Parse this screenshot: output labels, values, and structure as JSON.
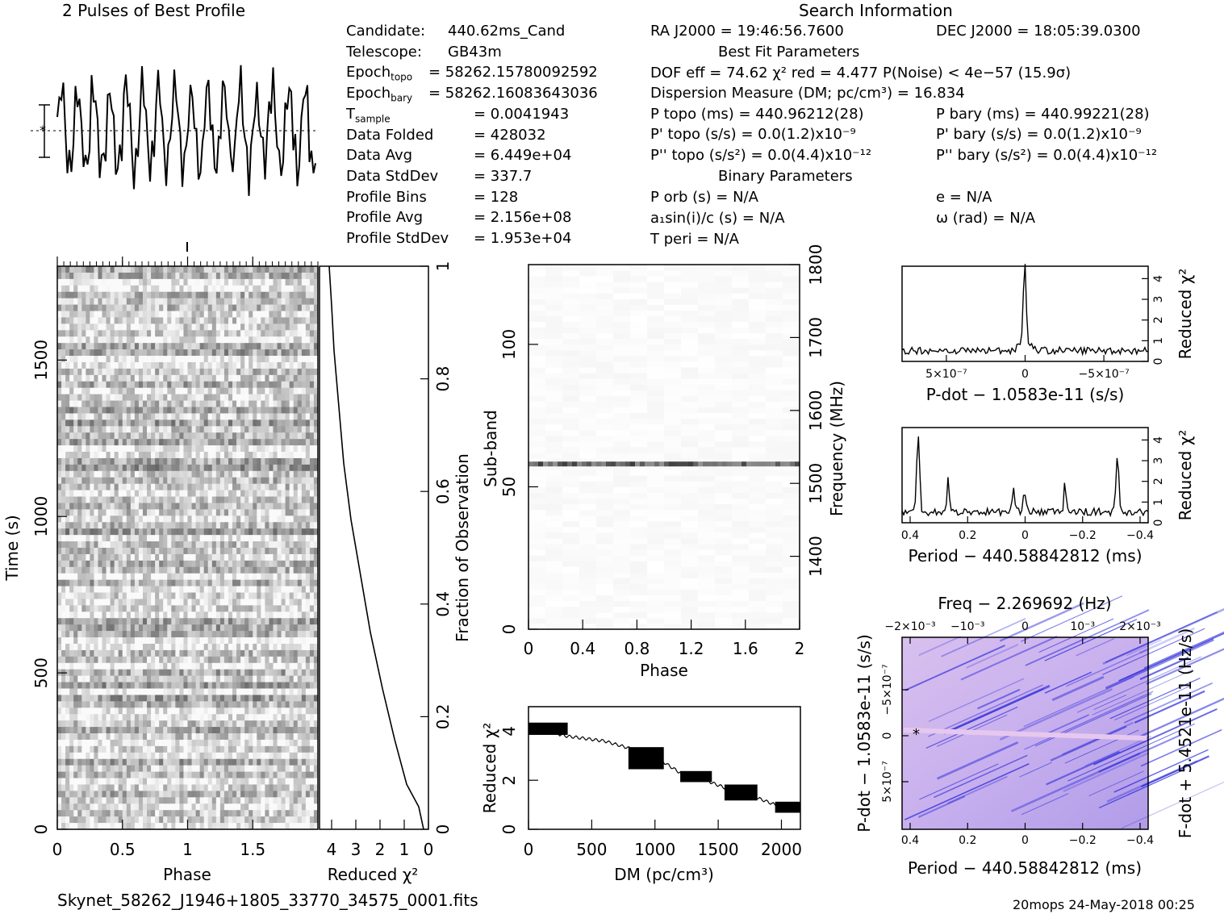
{
  "header": {
    "profile_title": "2 Pulses of Best Profile",
    "search_title": "Search Information",
    "best_fit_title": "Best Fit Parameters",
    "binary_title": "Binary Parameters"
  },
  "candidate_info": [
    {
      "label": "Candidate:",
      "value": "440.62ms_Cand"
    },
    {
      "label": "Telescope:",
      "value": "GB43m"
    },
    {
      "label": "Epoch",
      "sub": "topo",
      "value": "= 58262.15780092592"
    },
    {
      "label": "Epoch",
      "sub": "bary",
      "value": "= 58262.16083643036"
    },
    {
      "label": "T",
      "sub": "sample",
      "value": "=   0.0041943"
    },
    {
      "label": "Data Folded",
      "value": "=   428032"
    },
    {
      "label": "Data Avg",
      "value": "=   6.449e+04"
    },
    {
      "label": "Data StdDev",
      "value": "=   337.7"
    },
    {
      "label": "Profile Bins",
      "value": "=   128"
    },
    {
      "label": "Profile Avg",
      "value": "=   2.156e+08"
    },
    {
      "label": "Profile StdDev",
      "value": "=   1.953e+04"
    }
  ],
  "search_info": {
    "ra": "RA J2000 = 19:46:56.7600",
    "dec": "DEC J2000 = 18:05:39.0300",
    "dof": "DOF eff = 74.62  χ² red = 4.477  P(Noise) < 4e−57  (15.9σ)",
    "dm": "Dispersion Measure (DM; pc/cm³) = 16.834",
    "p_topo": "P topo (ms) =  440.96212(28)",
    "p_bary": "P bary (ms) =  440.99221(28)",
    "pd_topo": "P' topo (s/s) = 0.0(1.2)x10⁻⁹",
    "pd_bary": "P' bary (s/s) = 0.0(1.2)x10⁻⁹",
    "pdd_topo": "P'' topo (s/s²) = 0.0(4.4)x10⁻¹²",
    "pdd_bary": "P'' bary (s/s²) = 0.0(4.4)x10⁻¹²",
    "porb": "P orb (s) = N/A",
    "e": "e = N/A",
    "a1": "a₁sin(i)/c (s) = N/A",
    "omega": "ω (rad) = N/A",
    "tperi": "T peri = N/A"
  },
  "footer": {
    "filename": "Skynet_58262_J1946+1805_33770_34575_0001.fits",
    "stamp": "20mops 24-May-2018 00:25"
  },
  "colors": {
    "waterfall_dark": "#000000",
    "pdot_map_blue": "#1a1ad8",
    "pdot_map_light": "#e6c8ee"
  },
  "chart_data": [
    {
      "type": "line",
      "name": "profile",
      "title": "2 Pulses of Best Profile",
      "x": "phase 0–2 (256 bins)",
      "note": "noise-like profile, two repeated pulses"
    },
    {
      "type": "heatmap",
      "name": "time-phase",
      "xlabel": "Phase",
      "ylabel": "Time (s)",
      "xlim": [
        0,
        2
      ],
      "ylim": [
        0,
        1800
      ],
      "xticks": [
        "0",
        "0.5",
        "1",
        "1.5"
      ],
      "yticks": [
        "0",
        "500",
        "1000",
        "1500"
      ]
    },
    {
      "type": "line",
      "name": "reduced-chi2-vs-time",
      "xlabel": "Reduced χ²",
      "ylabel": "Fraction of Observation",
      "xlim": [
        4.5,
        0
      ],
      "ylim": [
        0,
        1
      ],
      "xticks": [
        "4",
        "3",
        "2",
        "1",
        "0"
      ],
      "yticks": [
        "0",
        "0.2",
        "0.4",
        "0.6",
        "0.8",
        "1"
      ],
      "x": [
        0.2,
        0.4,
        0.9,
        1.4,
        1.9,
        2.4,
        2.8,
        3.2,
        3.5,
        3.7,
        3.9,
        4.0,
        4.1
      ],
      "y": [
        0.0,
        0.04,
        0.08,
        0.16,
        0.25,
        0.35,
        0.45,
        0.55,
        0.65,
        0.75,
        0.85,
        0.93,
        1.0
      ]
    },
    {
      "type": "heatmap",
      "name": "subband-phase",
      "xlabel": "Phase",
      "ylabel": "Sub-band",
      "y2label": "Frequency (MHz)",
      "xlim": [
        0,
        2
      ],
      "ylim": [
        0,
        128
      ],
      "y2lim": [
        1300,
        1800
      ],
      "xticks": [
        "0",
        "0.4",
        "0.8",
        "1.2",
        "1.6",
        "2"
      ],
      "yticks": [
        "0",
        "50",
        "100"
      ],
      "y2ticks": [
        "1400",
        "1500",
        "1600",
        "1700",
        "1800"
      ],
      "bright_subband": 58
    },
    {
      "type": "line",
      "name": "dm-chi2",
      "xlabel": "DM (pc/cm³)",
      "ylabel": "Reduced χ²",
      "xlim": [
        0,
        2150
      ],
      "ylim": [
        0,
        5
      ],
      "xticks": [
        "0",
        "500",
        "1000",
        "1500",
        "2000"
      ],
      "yticks": [
        "0",
        "2",
        "4"
      ],
      "x": [
        0,
        150,
        300,
        450,
        600,
        800,
        950,
        1050,
        1200,
        1350,
        1500,
        1650,
        1800,
        1950,
        2150
      ],
      "y": [
        4.1,
        4.0,
        3.8,
        3.7,
        3.6,
        3.3,
        2.9,
        2.8,
        2.3,
        2.1,
        1.8,
        1.5,
        1.3,
        1.0,
        0.8
      ]
    },
    {
      "type": "line",
      "name": "pdot-chi2",
      "xlabel": "P-dot − 1.0583e-11 (s/s)",
      "ylabel": "Reduced χ²",
      "xticks": [
        "5×10⁻⁷",
        "0",
        "−5×10⁻⁷"
      ],
      "yticks": [
        "0",
        "1",
        "2",
        "3",
        "4"
      ],
      "peak_x": 0,
      "peak_y": 4.4
    },
    {
      "type": "line",
      "name": "period-chi2",
      "xlabel": "Period − 440.58842812 (ms)",
      "ylabel": "Reduced χ²",
      "xticks": [
        "0.4",
        "0.2",
        "0",
        "−0.2",
        "−0.4"
      ],
      "yticks": [
        "0",
        "1",
        "2",
        "3",
        "4"
      ],
      "x": [
        0.4,
        0.385,
        0.25,
        0.04,
        0.0,
        -0.15,
        -0.3,
        -0.4
      ],
      "y": [
        0.6,
        4.3,
        1.9,
        1.7,
        1.3,
        1.8,
        3.2,
        0.6
      ]
    },
    {
      "type": "heatmap",
      "name": "period-pdot",
      "title": "Freq − 2.269692 (Hz)",
      "xlabel": "Period − 440.58842812 (ms)",
      "ylabel": "P-dot − 1.0583e-11 (s/s)",
      "y2label": "F-dot + 5.4521e-11 (Hz/s)",
      "xticks": [
        "0.4",
        "0.2",
        "0",
        "−0.2",
        "−0.4"
      ],
      "topticks": [
        "−2×10⁻³",
        "−10⁻³",
        "0",
        "10⁻³",
        "2×10⁻³"
      ],
      "yticks": [
        "−5×10⁻⁷",
        "0",
        "5×10⁻⁷"
      ]
    }
  ]
}
